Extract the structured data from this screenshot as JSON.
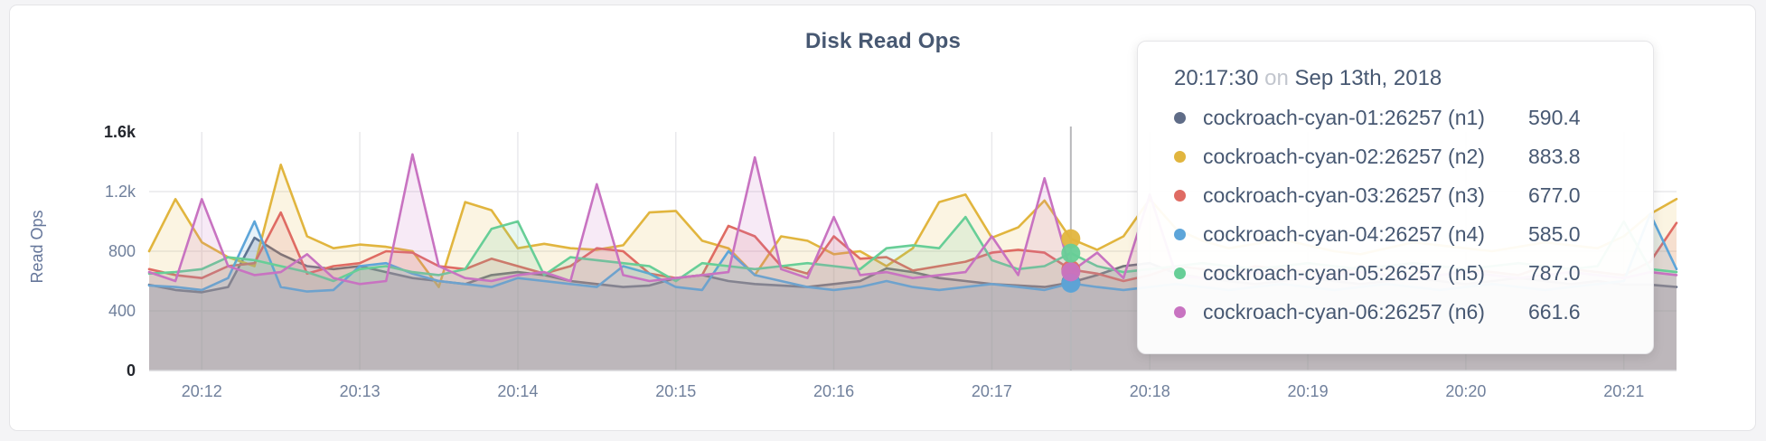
{
  "page": {
    "background": "#f4f4f6",
    "card_background": "#ffffff"
  },
  "chart_data": {
    "type": "area",
    "title": "Disk Read Ops",
    "ylabel": "Read Ops",
    "ylim": [
      0,
      1600
    ],
    "grid": true,
    "y_ticks": [
      {
        "label": "0",
        "value": 0,
        "grid": false,
        "strong": true
      },
      {
        "label": "400",
        "value": 400,
        "grid": true,
        "strong": false
      },
      {
        "label": "800",
        "value": 800,
        "grid": true,
        "strong": false
      },
      {
        "label": "1.2k",
        "value": 1200,
        "grid": true,
        "strong": false
      },
      {
        "label": "1.6k",
        "value": 1600,
        "grid": false,
        "strong": true
      }
    ],
    "x_ticks": [
      {
        "label": "20:12",
        "index": 2
      },
      {
        "label": "20:13",
        "index": 8
      },
      {
        "label": "20:14",
        "index": 14
      },
      {
        "label": "20:15",
        "index": 20
      },
      {
        "label": "20:16",
        "index": 26
      },
      {
        "label": "20:17",
        "index": 32
      },
      {
        "label": "20:18",
        "index": 38
      },
      {
        "label": "20:19",
        "index": 44
      },
      {
        "label": "20:20",
        "index": 50
      },
      {
        "label": "20:21",
        "index": 56
      }
    ],
    "hover_index": 35,
    "series": [
      {
        "name": "cockroach-cyan-01:26257 (n1)",
        "color": "#5f6c87",
        "values": [
          575,
          540,
          525,
          560,
          890,
          780,
          700,
          680,
          700,
          660,
          620,
          600,
          580,
          640,
          660,
          640,
          600,
          580,
          560,
          570,
          620,
          640,
          600,
          580,
          570,
          560,
          580,
          600,
          685,
          660,
          620,
          600,
          580,
          570,
          560,
          590.4,
          640,
          700,
          720,
          650,
          620,
          600,
          580,
          600,
          620,
          600,
          580,
          600,
          620,
          600,
          580,
          600,
          620,
          600,
          580,
          600,
          575,
          575,
          560
        ]
      },
      {
        "name": "cockroach-cyan-02:26257 (n2)",
        "color": "#e1b53e",
        "values": [
          800,
          1150,
          860,
          760,
          700,
          1380,
          900,
          820,
          845,
          830,
          800,
          560,
          1130,
          1075,
          820,
          850,
          820,
          810,
          840,
          1060,
          1070,
          870,
          820,
          640,
          900,
          870,
          780,
          800,
          700,
          820,
          1130,
          1180,
          890,
          960,
          1140,
          883.8,
          810,
          900,
          1150,
          950,
          870,
          820,
          850,
          880,
          840,
          800,
          780,
          820,
          860,
          840,
          820,
          800,
          830,
          860,
          840,
          820,
          900,
          1050,
          1150
        ]
      },
      {
        "name": "cockroach-cyan-03:26257 (n3)",
        "color": "#df6b63",
        "values": [
          680,
          640,
          620,
          700,
          720,
          1060,
          650,
          700,
          720,
          800,
          790,
          700,
          680,
          750,
          700,
          650,
          700,
          820,
          800,
          650,
          620,
          640,
          970,
          900,
          700,
          650,
          900,
          750,
          760,
          670,
          700,
          730,
          790,
          810,
          790,
          677,
          650,
          600,
          640,
          700,
          680,
          650,
          700,
          680,
          660,
          640,
          700,
          680,
          650,
          700,
          680,
          660,
          640,
          700,
          680,
          660,
          640,
          730,
          990
        ]
      },
      {
        "name": "cockroach-cyan-04:26257 (n4)",
        "color": "#5da5d9",
        "values": [
          570,
          560,
          540,
          620,
          1000,
          560,
          530,
          540,
          700,
          720,
          650,
          600,
          580,
          560,
          620,
          600,
          580,
          560,
          700,
          650,
          560,
          540,
          800,
          640,
          600,
          560,
          540,
          560,
          600,
          560,
          540,
          560,
          580,
          560,
          540,
          585,
          560,
          540,
          560,
          580,
          560,
          540,
          560,
          580,
          560,
          540,
          560,
          580,
          560,
          540,
          560,
          580,
          560,
          540,
          560,
          580,
          600,
          1050,
          680
        ]
      },
      {
        "name": "cockroach-cyan-05:26257 (n5)",
        "color": "#67ce97",
        "values": [
          650,
          660,
          680,
          760,
          740,
          700,
          660,
          600,
          680,
          700,
          660,
          640,
          680,
          950,
          1000,
          640,
          760,
          740,
          720,
          700,
          600,
          720,
          700,
          680,
          700,
          720,
          700,
          680,
          820,
          840,
          820,
          1030,
          740,
          680,
          700,
          787,
          700,
          660,
          680,
          700,
          720,
          700,
          680,
          700,
          720,
          700,
          680,
          700,
          720,
          700,
          680,
          700,
          720,
          700,
          680,
          700,
          1000,
          680,
          660
        ]
      },
      {
        "name": "cockroach-cyan-06:26257 (n6)",
        "color": "#c873c1",
        "values": [
          660,
          600,
          1150,
          700,
          640,
          660,
          780,
          620,
          580,
          600,
          1450,
          700,
          620,
          600,
          640,
          660,
          600,
          1250,
          640,
          600,
          620,
          640,
          660,
          1430,
          680,
          620,
          1030,
          640,
          660,
          620,
          640,
          660,
          900,
          640,
          1290,
          661.6,
          790,
          620,
          1180,
          640,
          620,
          640,
          660,
          640,
          620,
          640,
          660,
          640,
          620,
          640,
          660,
          640,
          620,
          640,
          660,
          640,
          620,
          660,
          640
        ]
      }
    ]
  },
  "tooltip": {
    "time": "20:17:30",
    "connector": "on",
    "date": "Sep 13th, 2018",
    "rows": [
      {
        "label": "cockroach-cyan-01:26257 (n1)",
        "value": "590.4"
      },
      {
        "label": "cockroach-cyan-02:26257 (n2)",
        "value": "883.8"
      },
      {
        "label": "cockroach-cyan-03:26257 (n3)",
        "value": "677.0"
      },
      {
        "label": "cockroach-cyan-04:26257 (n4)",
        "value": "585.0"
      },
      {
        "label": "cockroach-cyan-05:26257 (n5)",
        "value": "787.0"
      },
      {
        "label": "cockroach-cyan-06:26257 (n6)",
        "value": "661.6"
      }
    ]
  }
}
